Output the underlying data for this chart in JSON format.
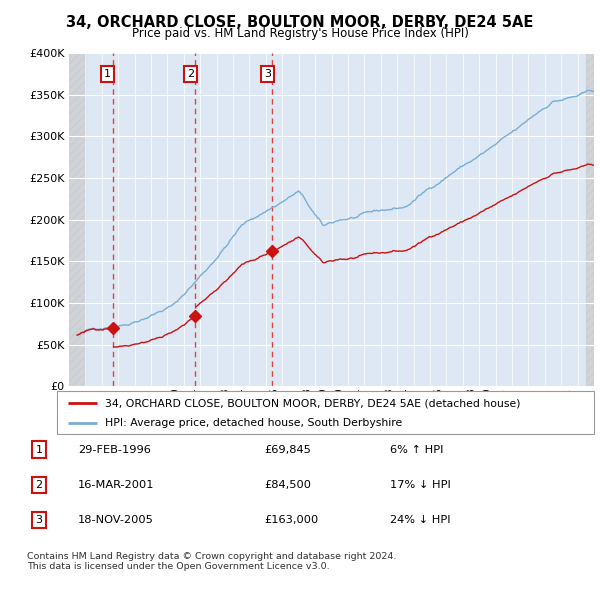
{
  "title": "34, ORCHARD CLOSE, BOULTON MOOR, DERBY, DE24 5AE",
  "subtitle": "Price paid vs. HM Land Registry's House Price Index (HPI)",
  "hpi_color": "#7aadd4",
  "price_color": "#cc1111",
  "vline_color": "#dd4444",
  "background_plot": "#dde8f4",
  "ylim": [
    0,
    400000
  ],
  "yticks": [
    0,
    50000,
    100000,
    150000,
    200000,
    250000,
    300000,
    350000,
    400000
  ],
  "xlim_start": 1993.5,
  "xlim_end": 2025.5,
  "transactions": [
    {
      "year": 1996.16,
      "price": 69845,
      "label": "1"
    },
    {
      "year": 2001.21,
      "price": 84500,
      "label": "2"
    },
    {
      "year": 2005.89,
      "price": 163000,
      "label": "3"
    }
  ],
  "table_rows": [
    {
      "num": "1",
      "date": "29-FEB-1996",
      "price": "£69,845",
      "pct": "6% ↑ HPI"
    },
    {
      "num": "2",
      "date": "16-MAR-2001",
      "price": "£84,500",
      "pct": "17% ↓ HPI"
    },
    {
      "num": "3",
      "date": "18-NOV-2005",
      "price": "£163,000",
      "pct": "24% ↓ HPI"
    }
  ],
  "legend_line1": "34, ORCHARD CLOSE, BOULTON MOOR, DERBY, DE24 5AE (detached house)",
  "legend_line2": "HPI: Average price, detached house, South Derbyshire",
  "footer": "Contains HM Land Registry data © Crown copyright and database right 2024.\nThis data is licensed under the Open Government Licence v3.0."
}
